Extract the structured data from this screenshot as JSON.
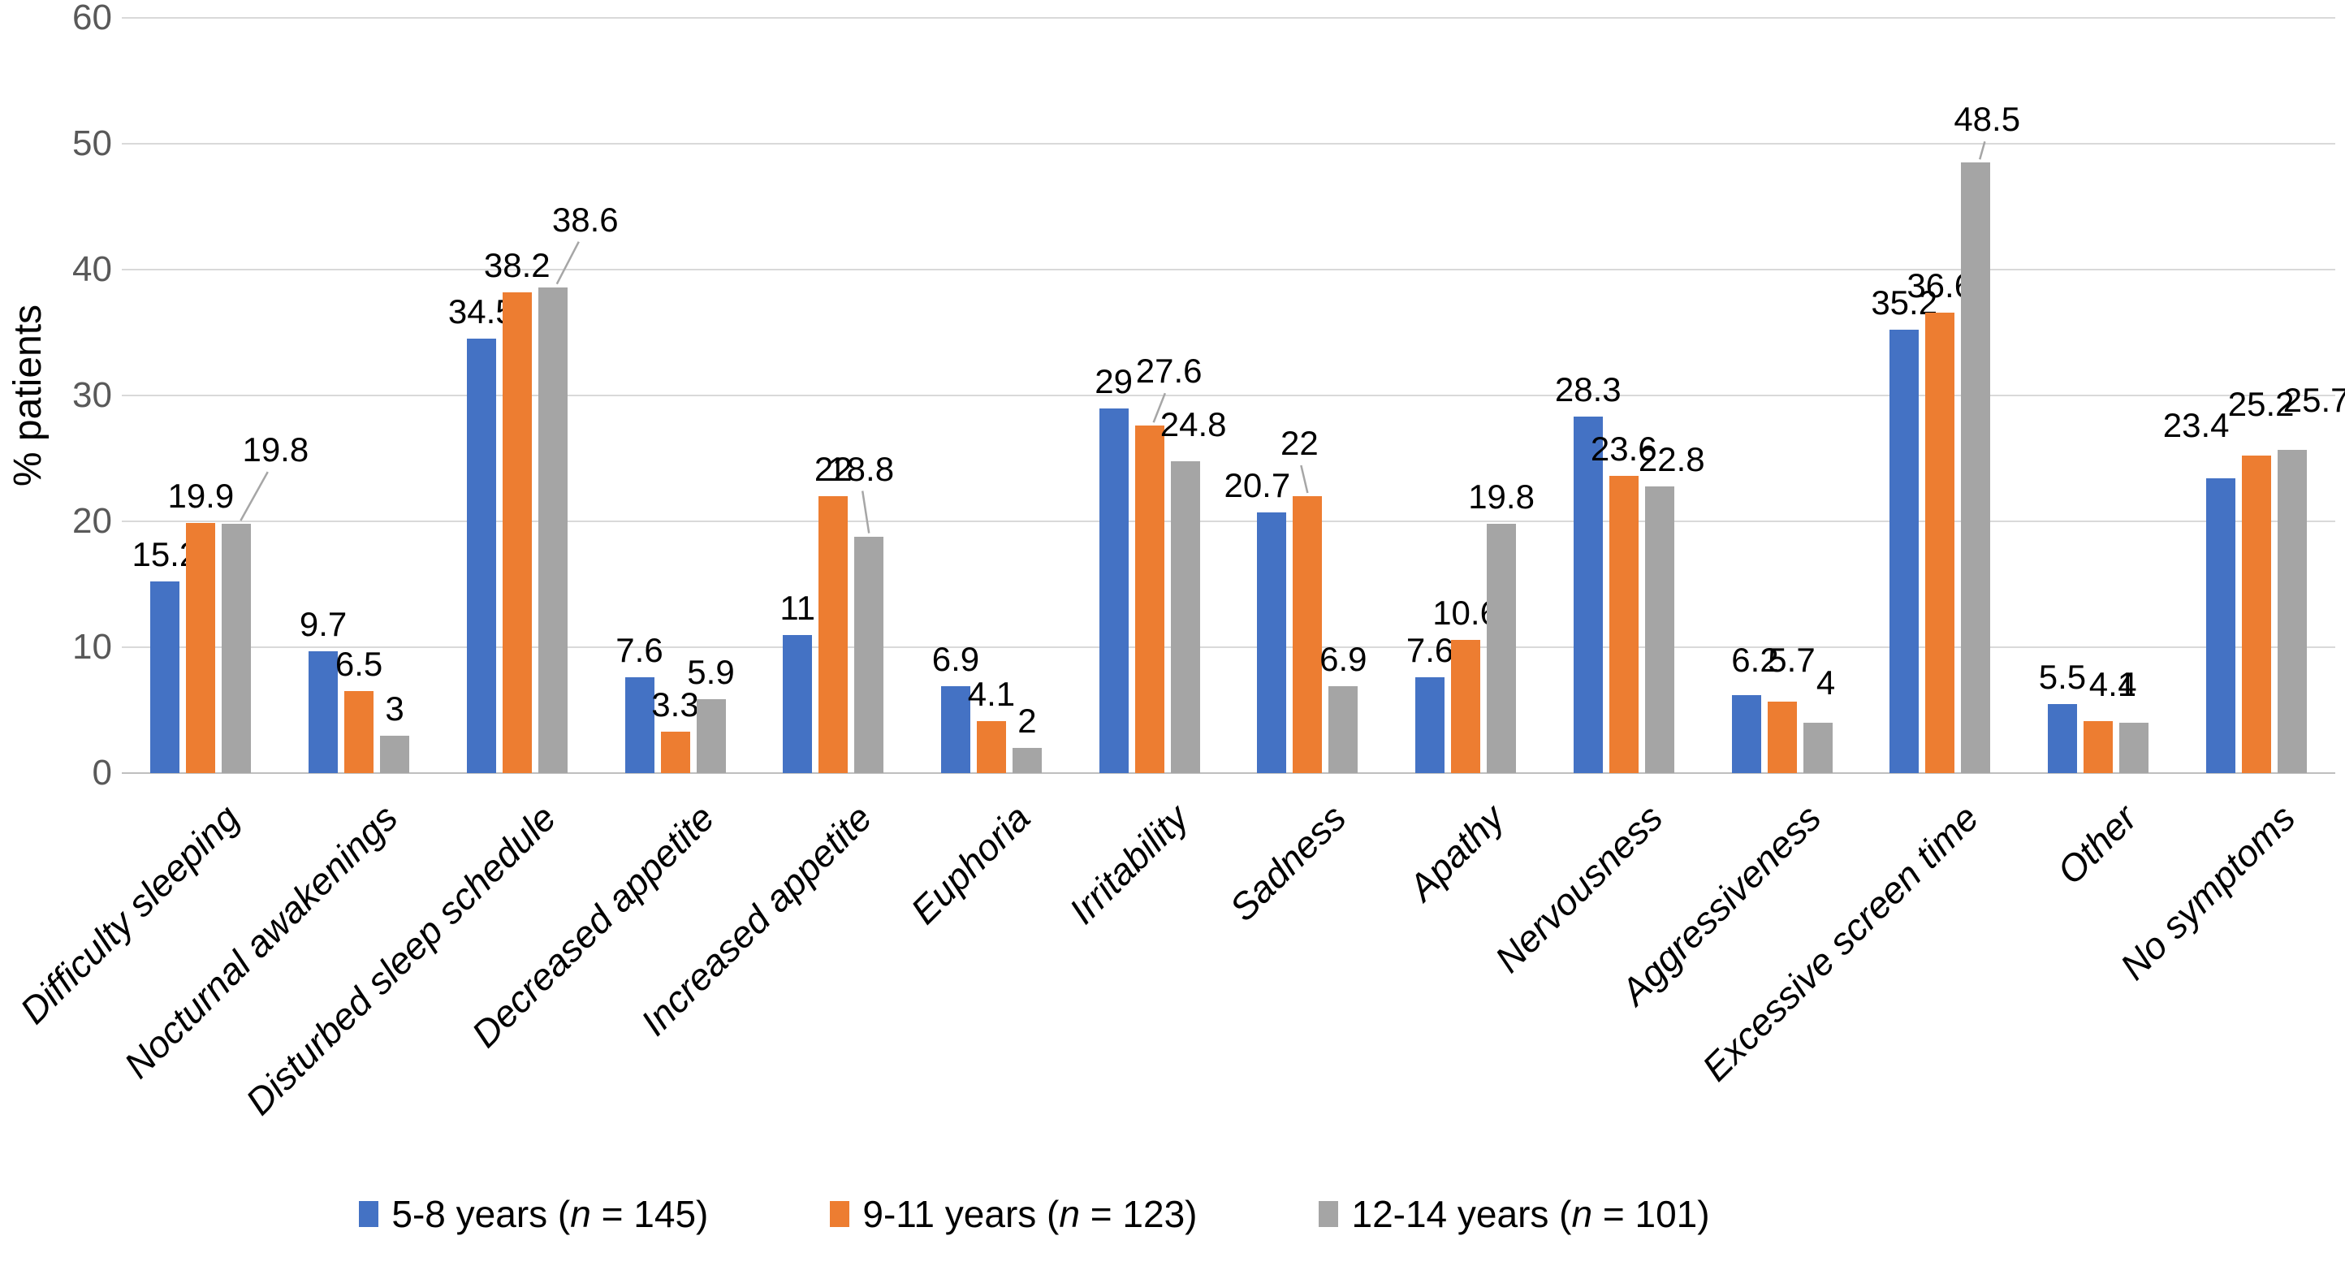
{
  "chart_data": {
    "type": "bar",
    "title": "",
    "ylabel": "% patients",
    "xlabel": "",
    "ylim": [
      0,
      60
    ],
    "yticks": [
      0,
      10,
      20,
      30,
      40,
      50,
      60
    ],
    "grid": "horizontal",
    "legend_position": "bottom",
    "categories": [
      "Difficulty sleeping",
      "Nocturnal awakenings",
      "Disturbed sleep schedule",
      "Decreased appetite",
      "Increased appetite",
      "Euphoria",
      "Irritability",
      "Sadness",
      "Apathy",
      "Nervousness",
      "Aggressiveness",
      "Excessive screen time",
      "Other",
      "No symptoms"
    ],
    "series": [
      {
        "name": "5-8 years (n = 145)",
        "legend_pre": "5-8 years (",
        "legend_n": "n",
        "legend_post": " = 145)",
        "color": "#4472C4",
        "values": [
          15.2,
          9.7,
          34.5,
          7.6,
          11,
          6.9,
          29,
          20.7,
          7.6,
          28.3,
          6.2,
          35.2,
          5.5,
          23.4
        ]
      },
      {
        "name": "9-11 years (n = 123)",
        "legend_pre": "9-11 years (",
        "legend_n": "n",
        "legend_post": " = 123)",
        "color": "#ED7D31",
        "values": [
          19.9,
          6.5,
          38.2,
          3.3,
          22,
          4.1,
          27.6,
          22,
          10.6,
          23.6,
          5.7,
          36.6,
          4.1,
          25.2
        ]
      },
      {
        "name": "12-14 years (n = 101)",
        "legend_pre": "12-14 years (",
        "legend_n": "n",
        "legend_post": " = 101)",
        "color": "#A5A5A5",
        "values": [
          19.8,
          3,
          38.6,
          5.9,
          18.8,
          2,
          24.8,
          6.9,
          19.8,
          22.8,
          4,
          48.5,
          4,
          25.7
        ]
      }
    ],
    "colors": {
      "gridline": "#D9D9D9",
      "axis_line": "#BFBFBF",
      "tick_text": "#595959",
      "data_label_text": "#000000",
      "leader_line": "#A6A6A6",
      "background": "#FFFFFF"
    }
  }
}
